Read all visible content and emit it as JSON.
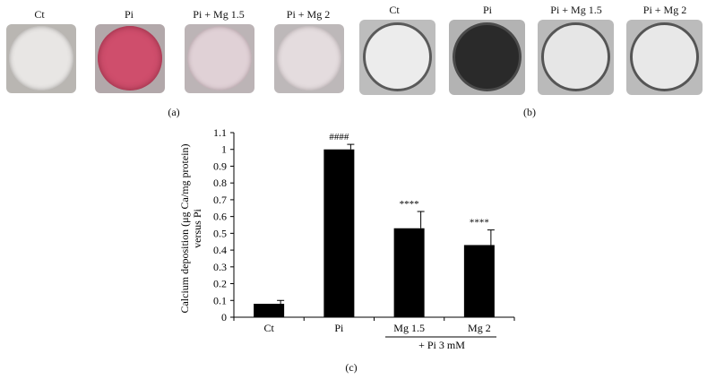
{
  "panels": {
    "a": {
      "label": "(a)",
      "wells": [
        {
          "name": "Ct",
          "color": "#e8e6e4",
          "inner": "#f2f1f0"
        },
        {
          "name": "Pi",
          "color": "#c8506a",
          "inner": "#d9607a"
        },
        {
          "name": "Pi + Mg 1.5",
          "color": "#e2d4d8",
          "inner": "#eadde0"
        },
        {
          "name": "Pi + Mg 2",
          "color": "#e5dddf",
          "inner": "#ece6e7"
        }
      ]
    },
    "b": {
      "label": "(b)",
      "wells": [
        {
          "name": "Ct",
          "color": "#e7e7e7",
          "inner": "#f0f0f0"
        },
        {
          "name": "Pi",
          "color": "#3a3a3a",
          "inner": "#262626"
        },
        {
          "name": "Pi + Mg 1.5",
          "color": "#e2e2e2",
          "inner": "#ebebeb"
        },
        {
          "name": "Pi + Mg 2",
          "color": "#e4e4e4",
          "inner": "#ededed"
        }
      ]
    },
    "c": {
      "label": "(c)"
    }
  },
  "chart_data": {
    "type": "bar",
    "categories": [
      "Ct",
      "Pi",
      "Mg 1.5",
      "Mg 2"
    ],
    "values": [
      0.08,
      1.0,
      0.53,
      0.43
    ],
    "errors": [
      0.02,
      0.03,
      0.1,
      0.09
    ],
    "annotations": [
      "",
      "####",
      "****",
      "****"
    ],
    "ylabel_line1": "Calcium deposition (μg Ca/mg protein)",
    "ylabel_line2": "versus Pi",
    "ylim": [
      0,
      1.1
    ],
    "yticks": [
      "0",
      "0.1",
      "0.2",
      "0.3",
      "0.4",
      "0.5",
      "0.6",
      "0.7",
      "0.8",
      "0.9",
      "1",
      "1.1"
    ],
    "group_label": "+ Pi 3 mM",
    "bar_color": "#000000",
    "grid": false
  }
}
